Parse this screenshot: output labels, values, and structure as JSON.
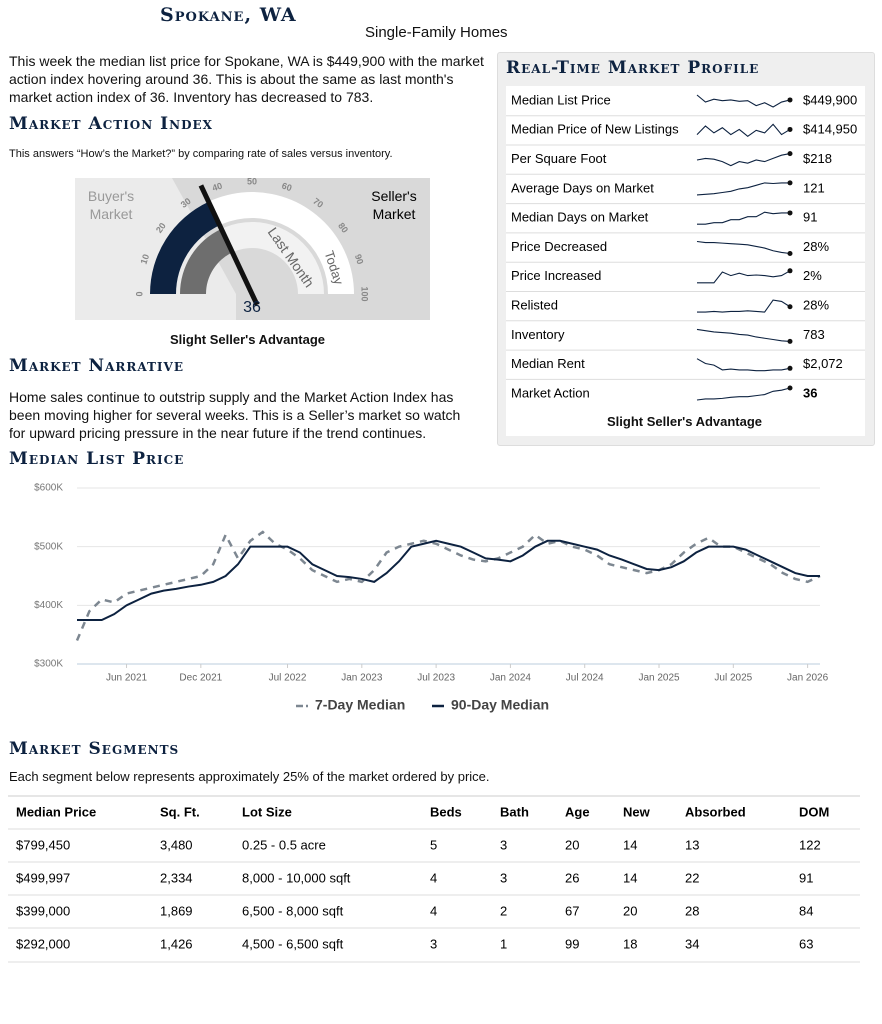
{
  "header": {
    "title": "Spokane, WA",
    "subtitle": "Single-Family Homes"
  },
  "intro": "This week the median list price for Spokane, WA is $449,900 with the market action index hovering around 36. This is about the same as last month's market action index of 36. Inventory has decreased to 783.",
  "market_action": {
    "heading": "Market Action Index",
    "description": "This answers “How’s the Market?” by comparing rate of sales versus inventory.",
    "buyers_label": "Buyer's Market",
    "sellers_label": "Seller's Market",
    "ticks": [
      0,
      10,
      20,
      30,
      40,
      50,
      60,
      70,
      80,
      90,
      100
    ],
    "last_month_label": "Last Month",
    "today_label": "Today",
    "value": 36,
    "last_month_value": 36,
    "caption": "Slight Seller's Advantage"
  },
  "narrative": {
    "heading": "Market Narrative",
    "text": "Home sales continue to outstrip supply and the Market Action Index has been moving higher for several weeks. This is a Seller’s market so watch for upward pricing pressure in the near future if the trend continues."
  },
  "profile": {
    "heading": "Real-Time Market Profile",
    "rows": [
      {
        "label": "Median List Price",
        "value": "$449,900",
        "trend": [
          62,
          52,
          56,
          54,
          55,
          53,
          54,
          47,
          51,
          45,
          52,
          55
        ]
      },
      {
        "label": "Median Price of New Listings",
        "value": "$414,950",
        "trend": [
          50,
          60,
          52,
          58,
          50,
          56,
          48,
          55,
          52,
          62,
          50,
          56
        ]
      },
      {
        "label": "Per Square Foot",
        "value": "$218",
        "trend": [
          52,
          54,
          53,
          50,
          45,
          50,
          48,
          52,
          50,
          54,
          58,
          60
        ]
      },
      {
        "label": "Average Days on Market",
        "value": "121",
        "trend": [
          40,
          41,
          42,
          44,
          46,
          50,
          52,
          56,
          60,
          59,
          60,
          60
        ]
      },
      {
        "label": "Median Days on Market",
        "value": "91",
        "trend": [
          40,
          40,
          42,
          42,
          46,
          46,
          50,
          50,
          56,
          54,
          55,
          55
        ]
      },
      {
        "label": "Price Decreased",
        "value": "28%",
        "trend": [
          62,
          60,
          60,
          59,
          58,
          57,
          56,
          53,
          50,
          45,
          42,
          40
        ]
      },
      {
        "label": "Price Increased",
        "value": "2%",
        "trend": [
          40,
          40,
          40,
          58,
          52,
          56,
          52,
          53,
          52,
          50,
          52,
          60
        ]
      },
      {
        "label": "Relisted",
        "value": "28%",
        "trend": [
          40,
          40,
          41,
          40,
          41,
          41,
          42,
          41,
          40,
          58,
          56,
          48
        ]
      },
      {
        "label": "Inventory",
        "value": "783",
        "trend": [
          62,
          60,
          58,
          57,
          56,
          54,
          53,
          50,
          48,
          46,
          44,
          43
        ]
      },
      {
        "label": "Median Rent",
        "value": "$2,072",
        "trend": [
          60,
          54,
          52,
          46,
          47,
          46,
          46,
          45,
          45,
          46,
          46,
          48
        ]
      },
      {
        "label": "Market Action",
        "value": 36,
        "trend": [
          40,
          42,
          42,
          43,
          45,
          46,
          46,
          48,
          50,
          56,
          58,
          62
        ]
      }
    ],
    "caption": "Slight Seller's Advantage"
  },
  "median_list_price": {
    "heading": "Median List Price",
    "chart_data": {
      "type": "line",
      "x": [
        "2021-02",
        "2021-03",
        "2021-04",
        "2021-05",
        "2021-06",
        "2021-07",
        "2021-08",
        "2021-09",
        "2021-10",
        "2021-11",
        "2021-12",
        "2022-01",
        "2022-02",
        "2022-03",
        "2022-04",
        "2022-05",
        "2022-06",
        "2022-07",
        "2022-08",
        "2022-09",
        "2022-10",
        "2022-11",
        "2022-12",
        "2023-01",
        "2023-02",
        "2023-03",
        "2023-04",
        "2023-05",
        "2023-06",
        "2023-07",
        "2023-08",
        "2023-09",
        "2023-10",
        "2023-11",
        "2023-12",
        "2024-01",
        "2024-02",
        "2024-03",
        "2024-04",
        "2024-05",
        "2024-06",
        "2024-07",
        "2024-08",
        "2024-09",
        "2024-10",
        "2024-11",
        "2024-12",
        "2025-01",
        "2025-02",
        "2025-03",
        "2025-04",
        "2025-05",
        "2025-06",
        "2025-07",
        "2025-08",
        "2025-09",
        "2025-10",
        "2025-11",
        "2025-12",
        "2026-01",
        "2026-02"
      ],
      "series": [
        {
          "name": "7-Day Median",
          "color": "#7d8791",
          "dashed": true,
          "values": [
            340000,
            390000,
            410000,
            405000,
            420000,
            425000,
            430000,
            435000,
            440000,
            445000,
            450000,
            470000,
            520000,
            480000,
            510000,
            525000,
            505000,
            495000,
            480000,
            460000,
            450000,
            440000,
            445000,
            440000,
            460000,
            490000,
            500000,
            505000,
            510000,
            505000,
            495000,
            485000,
            478000,
            475000,
            480000,
            490000,
            500000,
            520000,
            505000,
            510000,
            500000,
            495000,
            485000,
            470000,
            465000,
            460000,
            455000,
            460000,
            470000,
            490000,
            505000,
            515000,
            500000,
            500000,
            490000,
            480000,
            470000,
            455000,
            445000,
            440000,
            450000
          ]
        },
        {
          "name": "90-Day Median",
          "color": "#0d2240",
          "dashed": false,
          "values": [
            375000,
            375000,
            375000,
            385000,
            400000,
            410000,
            420000,
            425000,
            428000,
            432000,
            435000,
            440000,
            450000,
            470000,
            500000,
            500000,
            500000,
            500000,
            490000,
            470000,
            460000,
            450000,
            448000,
            445000,
            440000,
            455000,
            475000,
            500000,
            505000,
            510000,
            505000,
            500000,
            490000,
            480000,
            478000,
            475000,
            485000,
            500000,
            510000,
            510000,
            505000,
            500000,
            495000,
            485000,
            478000,
            470000,
            462000,
            460000,
            465000,
            475000,
            490000,
            500000,
            500000,
            500000,
            495000,
            485000,
            475000,
            465000,
            455000,
            450000,
            450000
          ]
        }
      ],
      "xlim": [
        "2021-02",
        "2026-02"
      ],
      "xticks": [
        {
          "value": "2021-06",
          "label": "Jun 2021"
        },
        {
          "value": "2021-12",
          "label": "Dec 2021"
        },
        {
          "value": "2022-07",
          "label": "Jul 2022"
        },
        {
          "value": "2023-01",
          "label": "Jan 2023"
        },
        {
          "value": "2023-07",
          "label": "Jul 2023"
        },
        {
          "value": "2024-01",
          "label": "Jan 2024"
        },
        {
          "value": "2024-07",
          "label": "Jul 2024"
        },
        {
          "value": "2025-01",
          "label": "Jan 2025"
        },
        {
          "value": "2025-07",
          "label": "Jul 2025"
        },
        {
          "value": "2026-01",
          "label": "Jan 2026"
        }
      ],
      "ylim": [
        300000,
        600000
      ],
      "yticks": [
        {
          "value": 300000,
          "label": "$300K"
        },
        {
          "value": 400000,
          "label": "$400K"
        },
        {
          "value": 500000,
          "label": "$500K"
        },
        {
          "value": 600000,
          "label": "$600K"
        }
      ],
      "grid": true,
      "legend": "bottom"
    }
  },
  "segments": {
    "heading": "Market Segments",
    "description": "Each segment below represents approximately 25% of the market ordered by price.",
    "columns": [
      "Median Price",
      "Sq. Ft.",
      "Lot Size",
      "Beds",
      "Bath",
      "Age",
      "New",
      "Absorbed",
      "DOM"
    ],
    "rows": [
      [
        "$799,450",
        "3,480",
        "0.25 - 0.5 acre",
        5,
        3,
        20,
        14,
        13,
        122
      ],
      [
        "$499,997",
        "2,334",
        "8,000 - 10,000 sqft",
        4,
        3,
        26,
        14,
        22,
        91
      ],
      [
        "$399,000",
        "1,869",
        "6,500 - 8,000 sqft",
        4,
        2,
        67,
        20,
        28,
        84
      ],
      [
        "$292,000",
        "1,426",
        "4,500 - 6,500 sqft",
        3,
        1,
        99,
        18,
        34,
        63
      ]
    ]
  }
}
